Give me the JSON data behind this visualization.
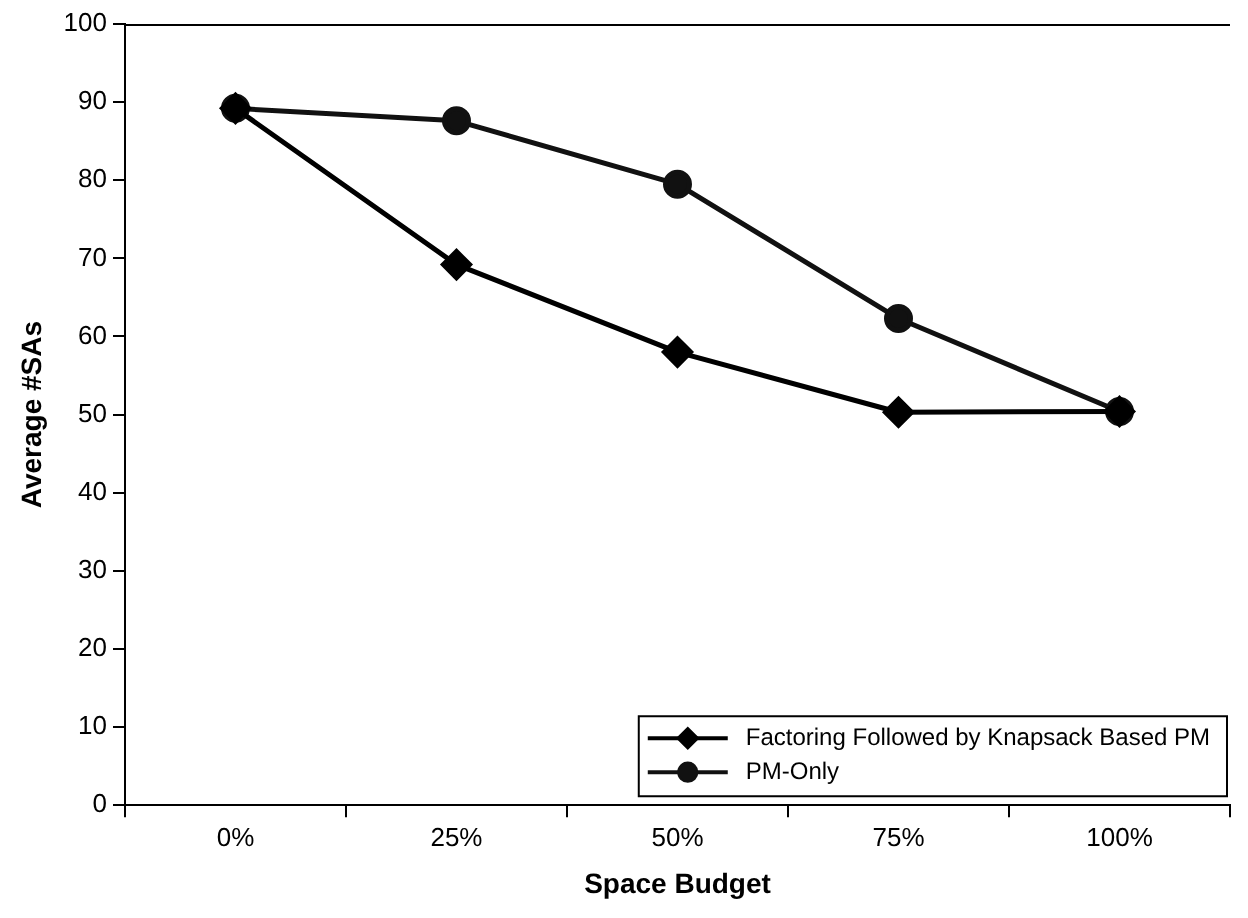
{
  "chart_data": {
    "type": "line",
    "xlabel": "Space Budget",
    "ylabel": "Average #SAs",
    "categories": [
      "0%",
      "25%",
      "50%",
      "75%",
      "100%"
    ],
    "ylim": [
      0,
      100
    ],
    "yticks": [
      0,
      10,
      20,
      30,
      40,
      50,
      60,
      70,
      80,
      90,
      100
    ],
    "grid": false,
    "legend": "bottom right",
    "line_style": "solid",
    "series": [
      {
        "name": "Factoring Followed by Knapsack Based PM",
        "color": "#000000",
        "marker": "diamond",
        "values": [
          89.2,
          69.2,
          58.0,
          50.3,
          50.4
        ]
      },
      {
        "name": "PM-Only",
        "color": "#111111",
        "marker": "circle",
        "values": [
          89.2,
          87.6,
          79.5,
          62.3,
          50.4
        ]
      }
    ]
  }
}
